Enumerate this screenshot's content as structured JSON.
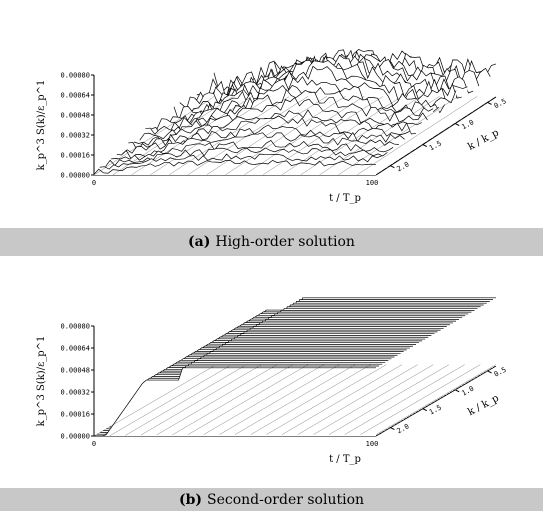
{
  "chart_data": [
    {
      "type": "surface",
      "panel_label": "(a)",
      "caption": "High-order solution",
      "zlabel": "k_p^3 S(k)/ε_p^1",
      "xlabel": "t / T_p",
      "ylabel": "k / k_p",
      "x_ticks": [
        "0",
        "100"
      ],
      "y_ticks": [
        "0.5",
        "1.0",
        "1.5",
        "2.0"
      ],
      "z_ticks": [
        "0.00000",
        "0.00016",
        "0.00032",
        "0.00048",
        "0.00064",
        "0.00080"
      ],
      "xlim": [
        0,
        100
      ],
      "ylim": [
        0.5,
        2.0
      ],
      "zlim": [
        0,
        0.0008
      ],
      "style": "wireframe, rough turbulent surface, peak near t=60, k/kp≈1"
    },
    {
      "type": "surface",
      "panel_label": "(b)",
      "caption": "Second-order solution",
      "zlabel": "k_p^3 S(k)/ε_p^1",
      "xlabel": "t / T_p",
      "ylabel": "k / k_p",
      "x_ticks": [
        "0",
        "100"
      ],
      "y_ticks": [
        "0.5",
        "1.0",
        "1.5",
        "2.0"
      ],
      "z_ticks": [
        "0.00000",
        "0.00016",
        "0.00032",
        "0.00048",
        "0.00064",
        "0.00080"
      ],
      "xlim": [
        0,
        100
      ],
      "ylim": [
        0.5,
        2.0
      ],
      "zlim": [
        0,
        0.0008
      ],
      "style": "dense wireframe, smooth plateau rising from t=0, level ≈0.00056"
    }
  ],
  "captions": {
    "a_letter": "(a)",
    "a_text": "High-order solution",
    "b_letter": "(b)",
    "b_text": "Second-order solution"
  }
}
